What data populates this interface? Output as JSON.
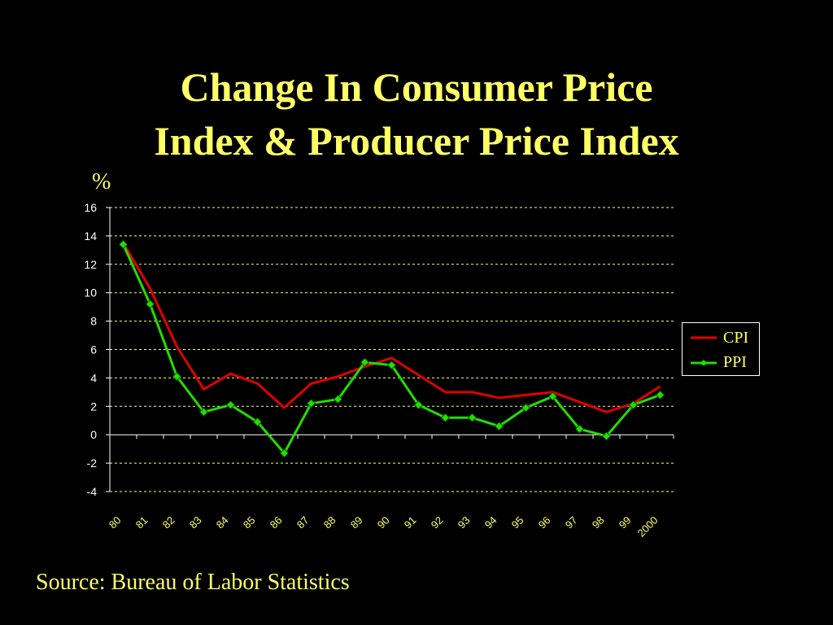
{
  "slide": {
    "title_line1": "Change In Consumer Price",
    "title_line2": "Index & Producer Price Index",
    "unit": "%",
    "source": "Source: Bureau of Labor Statistics"
  },
  "colors": {
    "background": "#000000",
    "text": "#FFFF66",
    "cpi": "#E00000",
    "ppi": "#22DD00",
    "ppi_marker": "#22DD00"
  },
  "chart_data": {
    "type": "line",
    "title": "Change In Consumer Price Index & Producer Price Index",
    "ylabel": "%",
    "xlabel": "",
    "categories": [
      "80",
      "81",
      "82",
      "83",
      "84",
      "85",
      "86",
      "87",
      "88",
      "89",
      "90",
      "91",
      "92",
      "93",
      "94",
      "95",
      "96",
      "97",
      "98",
      "99",
      "2000"
    ],
    "yticks": [
      "16",
      "14",
      "12",
      "10",
      "8",
      "6",
      "4",
      "2",
      "0",
      "-2",
      "-4"
    ],
    "ylim": [
      -4,
      16
    ],
    "grid": "horizontal dashed",
    "legend_position": "right",
    "series": [
      {
        "name": "CPI",
        "values": [
          13.5,
          10.3,
          6.2,
          3.2,
          4.3,
          3.6,
          1.9,
          3.6,
          4.1,
          4.8,
          5.4,
          4.2,
          3.0,
          3.0,
          2.6,
          2.8,
          3.0,
          2.3,
          1.6,
          2.2,
          3.4
        ]
      },
      {
        "name": "PPI",
        "values": [
          13.4,
          9.2,
          4.1,
          1.6,
          2.1,
          0.9,
          -1.3,
          2.2,
          2.5,
          5.1,
          4.9,
          2.1,
          1.2,
          1.2,
          0.6,
          1.9,
          2.7,
          0.4,
          -0.1,
          2.1,
          2.8
        ]
      }
    ]
  }
}
